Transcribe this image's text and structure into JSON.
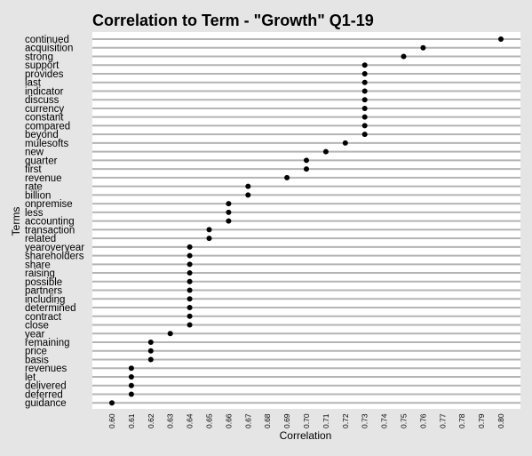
{
  "chart_data": {
    "type": "scatter",
    "title": "Correlation to Term - \"Growth\" Q1-19",
    "xlabel": "Correlation",
    "ylabel": "Terms",
    "xlim": [
      0.6,
      0.8
    ],
    "x_ticks": [
      "0.60",
      "0.61",
      "0.62",
      "0.63",
      "0.64",
      "0.65",
      "0.66",
      "0.67",
      "0.68",
      "0.69",
      "0.70",
      "0.71",
      "0.72",
      "0.73",
      "0.74",
      "0.75",
      "0.76",
      "0.77",
      "0.78",
      "0.79",
      "0.80"
    ],
    "grid": "horizontal",
    "legend": "none",
    "point_color": "#000000",
    "background": "#e5e5e5",
    "panel_background": "#ffffff",
    "grid_color": "#b4b4b4",
    "points": [
      {
        "term": "continued",
        "value": 0.8
      },
      {
        "term": "acquisition",
        "value": 0.76
      },
      {
        "term": "strong",
        "value": 0.75
      },
      {
        "term": "support",
        "value": 0.73
      },
      {
        "term": "provides",
        "value": 0.73
      },
      {
        "term": "last",
        "value": 0.73
      },
      {
        "term": "indicator",
        "value": 0.73
      },
      {
        "term": "discuss",
        "value": 0.73
      },
      {
        "term": "currency",
        "value": 0.73
      },
      {
        "term": "constant",
        "value": 0.73
      },
      {
        "term": "compared",
        "value": 0.73
      },
      {
        "term": "beyond",
        "value": 0.73
      },
      {
        "term": "mulesofts",
        "value": 0.72
      },
      {
        "term": "new",
        "value": 0.71
      },
      {
        "term": "quarter",
        "value": 0.7
      },
      {
        "term": "first",
        "value": 0.7
      },
      {
        "term": "revenue",
        "value": 0.69
      },
      {
        "term": "rate",
        "value": 0.67
      },
      {
        "term": "billion",
        "value": 0.67
      },
      {
        "term": "onpremise",
        "value": 0.66
      },
      {
        "term": "less",
        "value": 0.66
      },
      {
        "term": "accounting",
        "value": 0.66
      },
      {
        "term": "transaction",
        "value": 0.65
      },
      {
        "term": "related",
        "value": 0.65
      },
      {
        "term": "yearoveryear",
        "value": 0.64
      },
      {
        "term": "shareholders",
        "value": 0.64
      },
      {
        "term": "share",
        "value": 0.64
      },
      {
        "term": "raising",
        "value": 0.64
      },
      {
        "term": "possible",
        "value": 0.64
      },
      {
        "term": "partners",
        "value": 0.64
      },
      {
        "term": "including",
        "value": 0.64
      },
      {
        "term": "determined",
        "value": 0.64
      },
      {
        "term": "contract",
        "value": 0.64
      },
      {
        "term": "close",
        "value": 0.64
      },
      {
        "term": "year",
        "value": 0.63
      },
      {
        "term": "remaining",
        "value": 0.62
      },
      {
        "term": "price",
        "value": 0.62
      },
      {
        "term": "basis",
        "value": 0.62
      },
      {
        "term": "revenues",
        "value": 0.61
      },
      {
        "term": "let",
        "value": 0.61
      },
      {
        "term": "delivered",
        "value": 0.61
      },
      {
        "term": "deferred",
        "value": 0.61
      },
      {
        "term": "guidance",
        "value": 0.6
      }
    ]
  }
}
